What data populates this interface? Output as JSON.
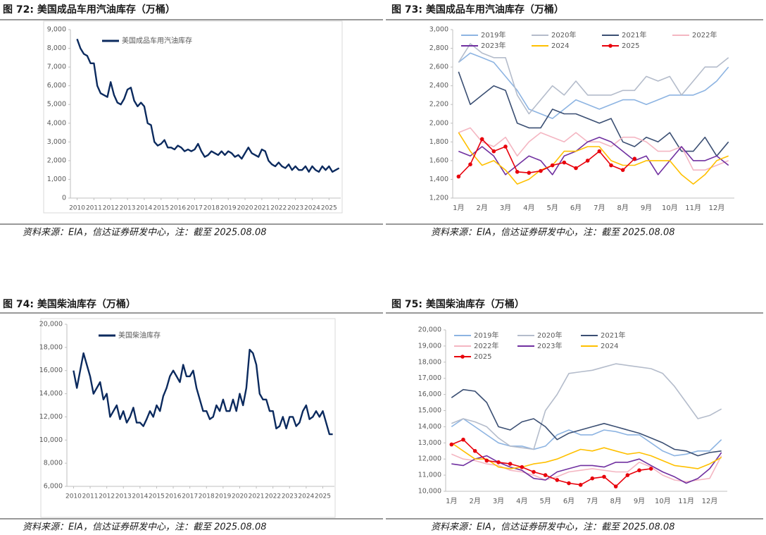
{
  "chart_data": [
    {
      "type": "line",
      "title": "图 72:  美国成品车用汽油库存（万桶）",
      "note": "资料来源：EIA，信达证券研发中心，注：截至 2025.08.08",
      "x": [
        2010,
        2010.2,
        2010.4,
        2010.6,
        2010.8,
        2011,
        2011.2,
        2011.4,
        2011.6,
        2011.8,
        2012,
        2012.2,
        2012.4,
        2012.6,
        2012.8,
        2013,
        2013.2,
        2013.4,
        2013.6,
        2013.8,
        2014,
        2014.2,
        2014.4,
        2014.6,
        2014.8,
        2015,
        2015.2,
        2015.4,
        2015.6,
        2015.8,
        2016,
        2016.2,
        2016.4,
        2016.6,
        2016.8,
        2017,
        2017.2,
        2017.4,
        2017.6,
        2017.8,
        2018,
        2018.2,
        2018.4,
        2018.6,
        2018.8,
        2019,
        2019.2,
        2019.4,
        2019.6,
        2019.8,
        2020,
        2020.2,
        2020.4,
        2020.6,
        2020.8,
        2021,
        2021.2,
        2021.4,
        2021.6,
        2021.8,
        2022,
        2022.2,
        2022.4,
        2022.6,
        2022.8,
        2023,
        2023.2,
        2023.4,
        2023.6,
        2023.8,
        2024,
        2024.2,
        2024.4,
        2024.6,
        2024.8,
        2025,
        2025.2,
        2025.4,
        2025.6
      ],
      "series": [
        {
          "name": "美国成品车用汽油库存",
          "color": "#0b2a5e",
          "values": [
            8500,
            8000,
            7700,
            7600,
            7200,
            7200,
            6000,
            5600,
            5500,
            5400,
            6200,
            5500,
            5100,
            5000,
            5300,
            5800,
            5900,
            5200,
            4900,
            5100,
            4900,
            4000,
            3900,
            3000,
            2800,
            2900,
            3100,
            2700,
            2700,
            2600,
            2800,
            2700,
            2500,
            2600,
            2500,
            2600,
            2900,
            2500,
            2200,
            2300,
            2500,
            2400,
            2300,
            2500,
            2300,
            2500,
            2400,
            2200,
            2300,
            2100,
            2400,
            2700,
            2400,
            2300,
            2200,
            2600,
            2500,
            2000,
            1800,
            1700,
            1900,
            1700,
            1600,
            1800,
            1500,
            1700,
            1500,
            1500,
            1700,
            1400,
            1700,
            1500,
            1400,
            1700,
            1500,
            1700,
            1400,
            1500,
            1600
          ]
        }
      ],
      "xlim": [
        2009.6,
        2025.7
      ],
      "xticks": [
        2010,
        2011,
        2012,
        2013,
        2014,
        2015,
        2016,
        2017,
        2018,
        2019,
        2020,
        2021,
        2022,
        2023,
        2024,
        2025
      ],
      "ylim": [
        0,
        9000
      ],
      "yticks": [
        0,
        {
          "value": 1000,
          "label": "1,000"
        },
        {
          "value": 2000,
          "label": "2,000"
        },
        {
          "value": 3000,
          "label": "3,000"
        },
        {
          "value": 4000,
          "label": "4,000"
        },
        {
          "value": 5000,
          "label": "5,000"
        },
        {
          "value": 6000,
          "label": "6,000"
        },
        {
          "value": 7000,
          "label": "7,000"
        },
        {
          "value": 8000,
          "label": "8,000"
        },
        {
          "value": 9000,
          "label": "9,000"
        }
      ],
      "grid": false,
      "legend": "upper left"
    },
    {
      "type": "line",
      "title": "图 73:  美国成品车用汽油库存（万桶）",
      "note": "资料来源：EIA，信达证券研发中心，注：截至 2025.08.08",
      "categories": [
        "1月",
        null,
        "2月",
        null,
        "3月",
        null,
        "4月",
        null,
        "5月",
        null,
        "6月",
        null,
        "7月",
        null,
        "8月",
        null,
        "9月",
        null,
        "10月",
        null,
        "11月",
        null,
        "12月",
        null
      ],
      "series": [
        {
          "name": "2019年",
          "color": "#8db4e2",
          "values": [
            2650,
            2750,
            2700,
            2650,
            2500,
            2350,
            2150,
            2100,
            2050,
            2150,
            2250,
            2200,
            2150,
            2200,
            2250,
            2250,
            2200,
            2250,
            2300,
            2300,
            2300,
            2350,
            2450,
            2600
          ]
        },
        {
          "name": "2020年",
          "color": "#b4bccb",
          "values": [
            2650,
            2850,
            2750,
            2700,
            2700,
            2300,
            2100,
            2250,
            2400,
            2300,
            2450,
            2300,
            2300,
            2300,
            2350,
            2350,
            2500,
            2450,
            2500,
            2300,
            2450,
            2600,
            2600,
            2700
          ]
        },
        {
          "name": "2021年",
          "color": "#3b4f73",
          "values": [
            2550,
            2200,
            2300,
            2400,
            2350,
            2000,
            1950,
            1950,
            2150,
            2100,
            2100,
            2050,
            2000,
            2050,
            1800,
            1750,
            1850,
            1800,
            1900,
            1700,
            1700,
            1850,
            1650,
            1800
          ]
        },
        {
          "name": "2022年",
          "color": "#f4b6c2",
          "values": [
            1900,
            1950,
            1800,
            1750,
            1850,
            1650,
            1800,
            1900,
            1850,
            1800,
            1900,
            1800,
            1800,
            1750,
            1850,
            1850,
            1800,
            1700,
            1700,
            1750,
            1500,
            1500,
            1550,
            1600
          ]
        },
        {
          "name": "2023年",
          "color": "#7030a0",
          "values": [
            1700,
            1650,
            1750,
            1650,
            1450,
            1550,
            1650,
            1600,
            1450,
            1650,
            1700,
            1800,
            1850,
            1800,
            1700,
            1600,
            1650,
            1450,
            1600,
            1750,
            1600,
            1600,
            1650,
            1550
          ]
        },
        {
          "name": "2024",
          "color": "#ffc000",
          "values": [
            1900,
            1700,
            1550,
            1600,
            1500,
            1350,
            1400,
            1500,
            1550,
            1700,
            1700,
            1750,
            1750,
            1600,
            1550,
            1550,
            1600,
            1600,
            1600,
            1450,
            1350,
            1450,
            1600,
            1650
          ]
        },
        {
          "name": "2025",
          "color": "#e8000b",
          "markers": true,
          "values": [
            1430,
            1560,
            1830,
            1700,
            1750,
            1480,
            1470,
            1490,
            1550,
            1580,
            1520,
            1600,
            1700,
            1550,
            1500,
            1620,
            null,
            null,
            null,
            null,
            null,
            null,
            null,
            null
          ]
        }
      ],
      "ylim": [
        1200,
        3000
      ],
      "yticks": [
        {
          "value": 1200,
          "label": "1,200"
        },
        {
          "value": 1400,
          "label": "1,400"
        },
        {
          "value": 1600,
          "label": "1,600"
        },
        {
          "value": 1800,
          "label": "1,800"
        },
        {
          "value": 2000,
          "label": "2,000"
        },
        {
          "value": 2200,
          "label": "2,200"
        },
        {
          "value": 2400,
          "label": "2,400"
        },
        {
          "value": 2600,
          "label": "2,600"
        },
        {
          "value": 2800,
          "label": "2,800"
        },
        {
          "value": 3000,
          "label": "3,000"
        }
      ],
      "grid": false,
      "legend": "upper"
    },
    {
      "type": "line",
      "title": "图 74:  美国柴油库存（万桶）",
      "note": "资料来源：EIA，信达证券研发中心，注：截至 2025.08.08",
      "x": [
        2010,
        2010.2,
        2010.4,
        2010.6,
        2010.8,
        2011,
        2011.2,
        2011.4,
        2011.6,
        2011.8,
        2012,
        2012.2,
        2012.4,
        2012.6,
        2012.8,
        2013,
        2013.2,
        2013.4,
        2013.6,
        2013.8,
        2014,
        2014.2,
        2014.4,
        2014.6,
        2014.8,
        2015,
        2015.2,
        2015.4,
        2015.6,
        2015.8,
        2016,
        2016.2,
        2016.4,
        2016.6,
        2016.8,
        2017,
        2017.2,
        2017.4,
        2017.6,
        2017.8,
        2018,
        2018.2,
        2018.4,
        2018.6,
        2018.8,
        2019,
        2019.2,
        2019.4,
        2019.6,
        2019.8,
        2020,
        2020.2,
        2020.4,
        2020.6,
        2020.8,
        2021,
        2021.2,
        2021.4,
        2021.6,
        2021.8,
        2022,
        2022.2,
        2022.4,
        2022.6,
        2022.8,
        2023,
        2023.2,
        2023.4,
        2023.6,
        2023.8,
        2024,
        2024.2,
        2024.4,
        2024.6,
        2024.8,
        2025,
        2025.2,
        2025.4,
        2025.6
      ],
      "series": [
        {
          "name": "美国柴油库存",
          "color": "#0b2a5e",
          "values": [
            16000,
            14500,
            16000,
            17500,
            16500,
            15500,
            14000,
            14500,
            15000,
            13500,
            14000,
            12000,
            12500,
            13000,
            11800,
            12500,
            11500,
            12000,
            12800,
            11500,
            11500,
            11200,
            11800,
            12500,
            12000,
            13000,
            12500,
            13800,
            14500,
            15500,
            16000,
            15500,
            15000,
            16500,
            15500,
            15500,
            16000,
            14500,
            13500,
            12500,
            12500,
            11800,
            12000,
            13000,
            12500,
            13500,
            12500,
            12500,
            13500,
            12500,
            14000,
            13000,
            14500,
            17800,
            17500,
            16500,
            14000,
            13500,
            13500,
            12500,
            12500,
            11000,
            11200,
            12000,
            11000,
            12000,
            12000,
            11200,
            11500,
            12500,
            13000,
            11800,
            12000,
            12500,
            12000,
            12500,
            11500,
            10500,
            10500
          ]
        }
      ],
      "xlim": [
        2009.6,
        2025.7
      ],
      "xticks": [
        2010,
        2011,
        2012,
        2013,
        2014,
        2015,
        2016,
        2017,
        2018,
        2019,
        2020,
        2021,
        2022,
        2023,
        2024,
        2025
      ],
      "ylim": [
        6000,
        20000
      ],
      "yticks": [
        {
          "value": 6000,
          "label": "6,000"
        },
        {
          "value": 8000,
          "label": "8,000"
        },
        {
          "value": 10000,
          "label": "10,000"
        },
        {
          "value": 12000,
          "label": "12,000"
        },
        {
          "value": 14000,
          "label": "14,000"
        },
        {
          "value": 16000,
          "label": "16,000"
        },
        {
          "value": 18000,
          "label": "18,000"
        },
        {
          "value": 20000,
          "label": "20,000"
        }
      ],
      "grid": false,
      "legend": "upper left"
    },
    {
      "type": "line",
      "title": "图 75:  美国柴油库存（万桶）",
      "note": "资料来源：EIA，信达证券研发中心，注：截至 2025.08.08",
      "categories": [
        "1月",
        null,
        "2月",
        null,
        "3月",
        null,
        "4月",
        null,
        "5月",
        null,
        "6月",
        null,
        "7月",
        null,
        "8月",
        null,
        "9月",
        null,
        "10月",
        null,
        "11月",
        null,
        "12月",
        null
      ],
      "series": [
        {
          "name": "2019年",
          "color": "#8db4e2",
          "values": [
            14000,
            14500,
            14000,
            13500,
            13000,
            12800,
            12800,
            12600,
            12800,
            13500,
            13800,
            13500,
            13500,
            13800,
            13700,
            13500,
            13500,
            13000,
            12500,
            12200,
            12300,
            12500,
            12500,
            13200
          ]
        },
        {
          "name": "2020年",
          "color": "#b4bccb",
          "values": [
            14200,
            14500,
            14300,
            14000,
            13300,
            12800,
            12700,
            12600,
            15000,
            16000,
            17300,
            17400,
            17500,
            17700,
            17900,
            17800,
            17700,
            17600,
            17300,
            16500,
            15500,
            14500,
            14700,
            15100
          ]
        },
        {
          "name": "2021年",
          "color": "#3b4f73",
          "values": [
            15800,
            16300,
            16200,
            15500,
            14000,
            13800,
            14300,
            14500,
            14000,
            13200,
            13600,
            13800,
            14000,
            14200,
            14000,
            13800,
            13600,
            13300,
            13000,
            12600,
            12500,
            12200,
            12400,
            12500
          ]
        },
        {
          "name": "2022年",
          "color": "#f4b6c2",
          "values": [
            12300,
            12000,
            11900,
            11700,
            11600,
            11300,
            11200,
            11000,
            10700,
            10900,
            11200,
            11300,
            11400,
            11300,
            11200,
            11200,
            11800,
            11500,
            11000,
            10700,
            10600,
            10700,
            10800,
            12200
          ]
        },
        {
          "name": "2023年",
          "color": "#7030a0",
          "values": [
            11700,
            11600,
            12000,
            12200,
            11800,
            11500,
            11300,
            10800,
            10700,
            11200,
            11400,
            11600,
            11600,
            11500,
            11800,
            11800,
            12000,
            11600,
            11200,
            10900,
            10500,
            10800,
            11400,
            12400
          ]
        },
        {
          "name": "2024",
          "color": "#ffc000",
          "values": [
            13000,
            12500,
            12000,
            12000,
            11500,
            11400,
            11500,
            11700,
            11800,
            12000,
            12300,
            12600,
            12500,
            12700,
            12500,
            12300,
            12400,
            12200,
            11900,
            11600,
            11500,
            11400,
            11700,
            12100
          ]
        },
        {
          "name": "2025",
          "color": "#e8000b",
          "markers": true,
          "values": [
            12900,
            13200,
            12500,
            11900,
            11800,
            11700,
            11500,
            11200,
            11000,
            10700,
            10500,
            10400,
            10800,
            10900,
            10300,
            11000,
            11300,
            11400,
            null,
            null,
            null,
            null,
            null,
            null
          ]
        }
      ],
      "ylim": [
        10000,
        20000
      ],
      "yticks": [
        {
          "value": 10000,
          "label": "10,000"
        },
        {
          "value": 11000,
          "label": "11,000"
        },
        {
          "value": 12000,
          "label": "12,000"
        },
        {
          "value": 13000,
          "label": "13,000"
        },
        {
          "value": 14000,
          "label": "14,000"
        },
        {
          "value": 15000,
          "label": "15,000"
        },
        {
          "value": 16000,
          "label": "16,000"
        },
        {
          "value": 17000,
          "label": "17,000"
        },
        {
          "value": 18000,
          "label": "18,000"
        },
        {
          "value": 19000,
          "label": "19,000"
        },
        {
          "value": 20000,
          "label": "20,000"
        }
      ],
      "grid": false,
      "legend": "upper"
    }
  ]
}
